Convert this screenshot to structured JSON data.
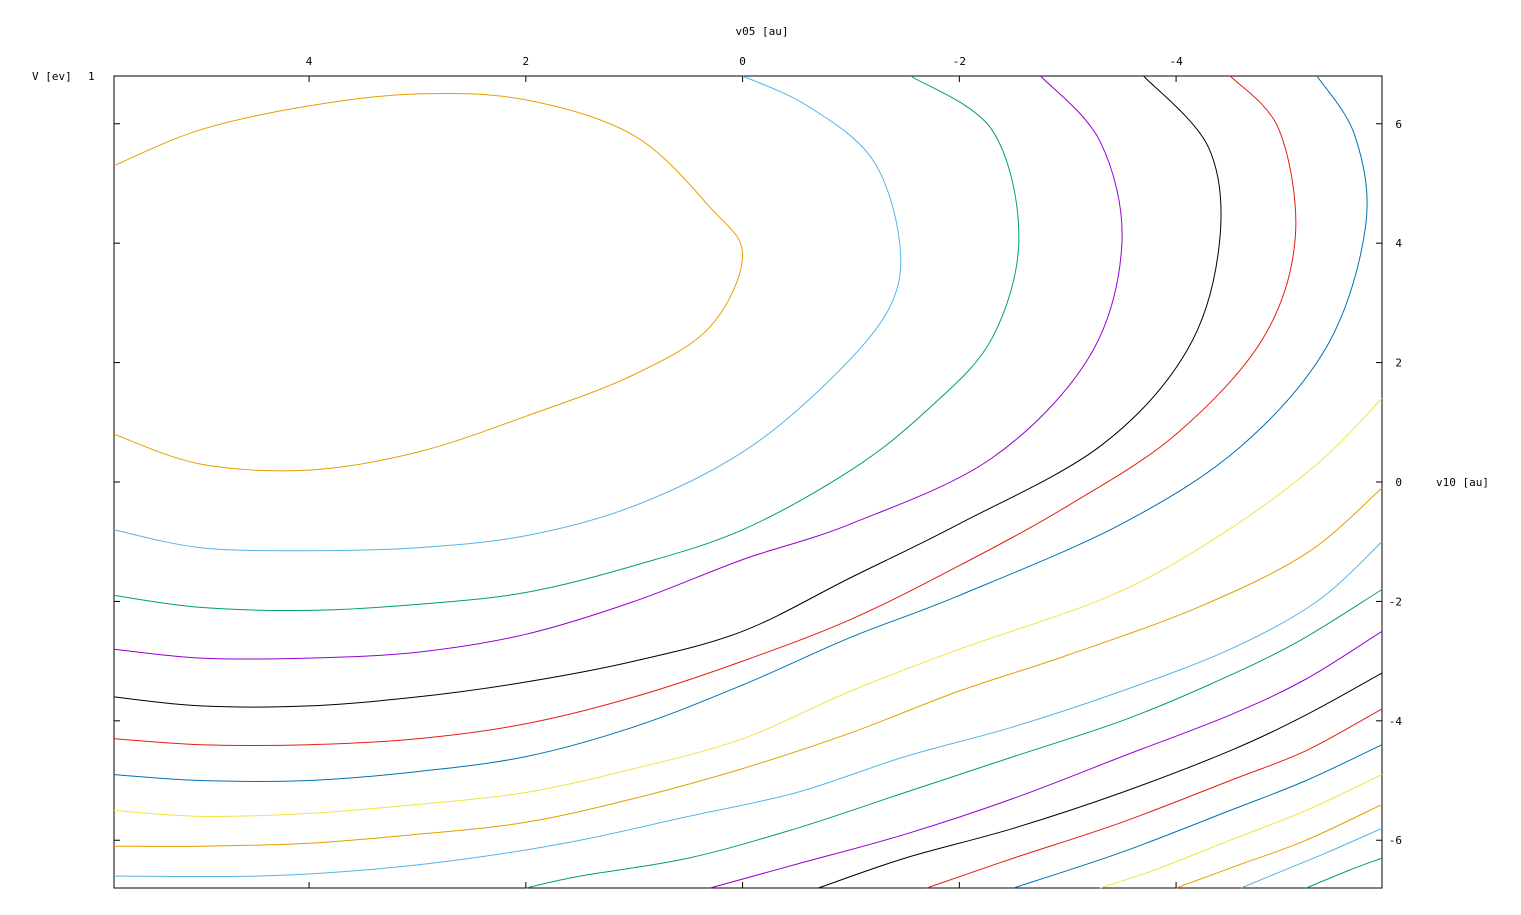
{
  "chart_data": {
    "type": "contour",
    "title": "",
    "xlabel": "v05 [au]",
    "ylabel": "v10 [au]",
    "zlabel": "V [ev]",
    "zlabel_extra": "1",
    "x_axis_position": "top",
    "y_axis_position": "right",
    "xlim": [
      5.8,
      -5.9
    ],
    "ylim": [
      -6.8,
      6.8
    ],
    "x_ticks": [
      4,
      2,
      0,
      -2,
      -4
    ],
    "x_tick_labels": [
      "4",
      "2",
      "0",
      "-2",
      "-4"
    ],
    "y_ticks": [
      6,
      4,
      2,
      0,
      -2,
      -4,
      -6
    ],
    "y_tick_labels": [
      "6",
      "4",
      "2",
      "0",
      "-2",
      "-4",
      "-6"
    ],
    "grid": false,
    "legend": "none",
    "contours": [
      {
        "color": "#e69f00",
        "points": [
          [
            5.8,
            5.3
          ],
          [
            5.0,
            5.9
          ],
          [
            4.0,
            6.3
          ],
          [
            3.0,
            6.5
          ],
          [
            2.0,
            6.4
          ],
          [
            1.0,
            5.8
          ],
          [
            0.3,
            4.6
          ],
          [
            0.0,
            3.8
          ],
          [
            0.3,
            2.6
          ],
          [
            1.0,
            1.8
          ],
          [
            2.0,
            1.1
          ],
          [
            3.0,
            0.5
          ],
          [
            4.0,
            0.2
          ],
          [
            5.0,
            0.3
          ],
          [
            5.8,
            0.8
          ]
        ]
      },
      {
        "color": "#56b4e9",
        "points": [
          [
            0.0,
            6.8
          ],
          [
            -0.6,
            6.3
          ],
          [
            -1.2,
            5.4
          ],
          [
            -1.45,
            4.0
          ],
          [
            -1.35,
            2.9
          ],
          [
            -0.8,
            1.7
          ],
          [
            0.0,
            0.5
          ],
          [
            1.0,
            -0.4
          ],
          [
            2.0,
            -0.9
          ],
          [
            3.0,
            -1.1
          ],
          [
            4.0,
            -1.15
          ],
          [
            5.0,
            -1.1
          ],
          [
            5.8,
            -0.8
          ]
        ]
      },
      {
        "color": "#009e73",
        "points": [
          [
            -1.55,
            6.8
          ],
          [
            -2.3,
            5.9
          ],
          [
            -2.55,
            4.1
          ],
          [
            -2.3,
            2.4
          ],
          [
            -1.7,
            1.2
          ],
          [
            -1.0,
            0.2
          ],
          [
            0.0,
            -0.8
          ],
          [
            1.0,
            -1.4
          ],
          [
            2.0,
            -1.85
          ],
          [
            3.0,
            -2.05
          ],
          [
            4.0,
            -2.15
          ],
          [
            5.0,
            -2.1
          ],
          [
            5.8,
            -1.9
          ]
        ]
      },
      {
        "color": "#9400d3",
        "points": [
          [
            -2.75,
            6.8
          ],
          [
            -3.3,
            5.7
          ],
          [
            -3.5,
            4.0
          ],
          [
            -3.2,
            2.1
          ],
          [
            -2.3,
            0.4
          ],
          [
            -1.0,
            -0.7
          ],
          [
            0.0,
            -1.3
          ],
          [
            1.0,
            -2.0
          ],
          [
            2.0,
            -2.55
          ],
          [
            3.0,
            -2.85
          ],
          [
            4.0,
            -2.95
          ],
          [
            5.0,
            -2.95
          ],
          [
            5.8,
            -2.8
          ]
        ]
      },
      {
        "color": "#000000",
        "points": [
          [
            -3.7,
            6.8
          ],
          [
            -4.3,
            5.6
          ],
          [
            -4.4,
            4.0
          ],
          [
            -4.1,
            2.2
          ],
          [
            -3.3,
            0.6
          ],
          [
            -2.0,
            -0.7
          ],
          [
            -1.0,
            -1.6
          ],
          [
            0.0,
            -2.5
          ],
          [
            1.0,
            -3.0
          ],
          [
            2.0,
            -3.35
          ],
          [
            3.0,
            -3.6
          ],
          [
            4.0,
            -3.75
          ],
          [
            5.0,
            -3.75
          ],
          [
            5.8,
            -3.6
          ]
        ]
      },
      {
        "color": "#e51e10",
        "points": [
          [
            -4.5,
            6.8
          ],
          [
            -4.95,
            5.9
          ],
          [
            -5.1,
            4.1
          ],
          [
            -4.8,
            2.4
          ],
          [
            -4.0,
            0.8
          ],
          [
            -3.0,
            -0.4
          ],
          [
            -2.0,
            -1.4
          ],
          [
            -1.0,
            -2.3
          ],
          [
            0.0,
            -3.0
          ],
          [
            1.0,
            -3.6
          ],
          [
            2.0,
            -4.05
          ],
          [
            3.0,
            -4.3
          ],
          [
            4.0,
            -4.4
          ],
          [
            5.0,
            -4.4
          ],
          [
            5.8,
            -4.3
          ]
        ]
      },
      {
        "color": "#0072b2",
        "points": [
          [
            -5.3,
            6.8
          ],
          [
            -5.65,
            5.8
          ],
          [
            -5.75,
            4.3
          ],
          [
            -5.4,
            2.3
          ],
          [
            -4.6,
            0.6
          ],
          [
            -3.5,
            -0.7
          ],
          [
            -2.0,
            -1.9
          ],
          [
            -1.0,
            -2.6
          ],
          [
            0.0,
            -3.4
          ],
          [
            1.0,
            -4.1
          ],
          [
            2.0,
            -4.6
          ],
          [
            3.0,
            -4.85
          ],
          [
            4.0,
            -5.0
          ],
          [
            5.0,
            -5.0
          ],
          [
            5.8,
            -4.9
          ]
        ]
      },
      {
        "color": "#f0e442",
        "points": [
          [
            -5.9,
            1.4
          ],
          [
            -5.3,
            0.3
          ],
          [
            -4.4,
            -0.9
          ],
          [
            -3.4,
            -1.9
          ],
          [
            -2.0,
            -2.8
          ],
          [
            -1.0,
            -3.5
          ],
          [
            0.0,
            -4.3
          ],
          [
            1.0,
            -4.8
          ],
          [
            2.0,
            -5.2
          ],
          [
            3.0,
            -5.4
          ],
          [
            4.0,
            -5.55
          ],
          [
            5.0,
            -5.6
          ],
          [
            5.8,
            -5.5
          ]
        ]
      },
      {
        "color": "#e69f00",
        "points": [
          [
            -5.9,
            -0.1
          ],
          [
            -5.2,
            -1.2
          ],
          [
            -4.2,
            -2.1
          ],
          [
            -3.0,
            -2.9
          ],
          [
            -2.0,
            -3.5
          ],
          [
            -1.0,
            -4.2
          ],
          [
            0.0,
            -4.8
          ],
          [
            1.0,
            -5.3
          ],
          [
            2.0,
            -5.7
          ],
          [
            3.0,
            -5.9
          ],
          [
            4.0,
            -6.05
          ],
          [
            5.0,
            -6.1
          ],
          [
            5.8,
            -6.1
          ]
        ]
      },
      {
        "color": "#56b4e9",
        "points": [
          [
            -5.9,
            -1.0
          ],
          [
            -5.3,
            -2.0
          ],
          [
            -4.5,
            -2.8
          ],
          [
            -3.5,
            -3.5
          ],
          [
            -2.5,
            -4.1
          ],
          [
            -1.5,
            -4.6
          ],
          [
            -0.5,
            -5.2
          ],
          [
            0.5,
            -5.6
          ],
          [
            1.5,
            -6.0
          ],
          [
            2.5,
            -6.3
          ],
          [
            3.5,
            -6.5
          ],
          [
            4.5,
            -6.6
          ],
          [
            5.8,
            -6.6
          ]
        ]
      },
      {
        "color": "#009e73",
        "points": [
          [
            -5.9,
            -1.8
          ],
          [
            -5.1,
            -2.7
          ],
          [
            -4.3,
            -3.4
          ],
          [
            -3.5,
            -4.0
          ],
          [
            -2.5,
            -4.6
          ],
          [
            -1.5,
            -5.2
          ],
          [
            -0.5,
            -5.8
          ],
          [
            0.5,
            -6.3
          ],
          [
            1.5,
            -6.6
          ],
          [
            2.0,
            -6.8
          ]
        ]
      },
      {
        "color": "#9400d3",
        "points": [
          [
            -5.9,
            -2.5
          ],
          [
            -5.2,
            -3.3
          ],
          [
            -4.5,
            -3.9
          ],
          [
            -3.5,
            -4.6
          ],
          [
            -2.5,
            -5.3
          ],
          [
            -1.5,
            -5.9
          ],
          [
            -0.5,
            -6.4
          ],
          [
            0.3,
            -6.8
          ]
        ]
      },
      {
        "color": "#000000",
        "points": [
          [
            -5.9,
            -3.2
          ],
          [
            -5.2,
            -3.9
          ],
          [
            -4.5,
            -4.5
          ],
          [
            -3.5,
            -5.2
          ],
          [
            -2.5,
            -5.8
          ],
          [
            -1.5,
            -6.3
          ],
          [
            -0.7,
            -6.8
          ]
        ]
      },
      {
        "color": "#e51e10",
        "points": [
          [
            -5.9,
            -3.8
          ],
          [
            -5.2,
            -4.5
          ],
          [
            -4.5,
            -5.0
          ],
          [
            -3.5,
            -5.7
          ],
          [
            -2.5,
            -6.3
          ],
          [
            -1.7,
            -6.8
          ]
        ]
      },
      {
        "color": "#0072b2",
        "points": [
          [
            -5.9,
            -4.4
          ],
          [
            -5.2,
            -5.0
          ],
          [
            -4.5,
            -5.5
          ],
          [
            -3.5,
            -6.2
          ],
          [
            -2.5,
            -6.8
          ]
        ]
      },
      {
        "color": "#f0e442",
        "points": [
          [
            -5.9,
            -4.9
          ],
          [
            -5.2,
            -5.5
          ],
          [
            -4.5,
            -6.0
          ],
          [
            -3.8,
            -6.5
          ],
          [
            -3.3,
            -6.8
          ]
        ]
      },
      {
        "color": "#e69f00",
        "points": [
          [
            -5.9,
            -5.4
          ],
          [
            -5.2,
            -6.0
          ],
          [
            -4.6,
            -6.4
          ],
          [
            -4.0,
            -6.8
          ]
        ]
      },
      {
        "color": "#56b4e9",
        "points": [
          [
            -5.9,
            -5.8
          ],
          [
            -5.4,
            -6.2
          ],
          [
            -5.0,
            -6.5
          ],
          [
            -4.6,
            -6.8
          ]
        ]
      },
      {
        "color": "#009e73",
        "points": [
          [
            -5.9,
            -6.3
          ],
          [
            -5.6,
            -6.5
          ],
          [
            -5.2,
            -6.8
          ]
        ]
      }
    ]
  }
}
